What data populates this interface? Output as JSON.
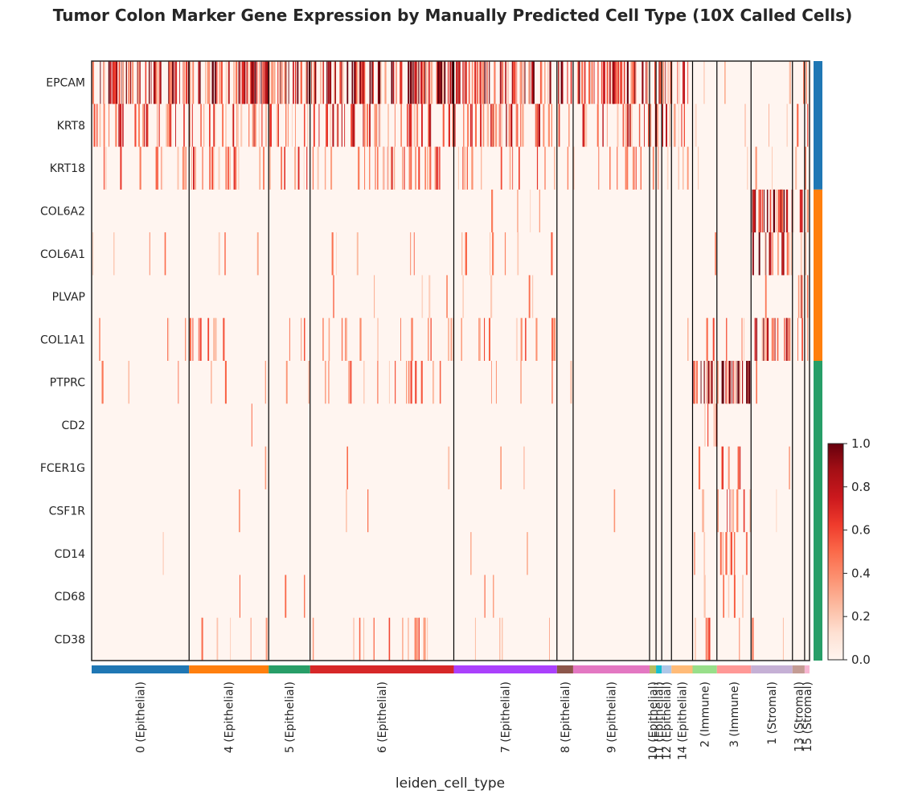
{
  "chart_data": {
    "type": "heatmap",
    "title": "Tumor Colon Marker Gene Expression by Manually Predicted Cell Type (10X Called Cells)",
    "xlabel": "leiden_cell_type",
    "genes": [
      "EPCAM",
      "KRT8",
      "KRT18",
      "COL6A2",
      "COL6A1",
      "PLVAP",
      "COL1A1",
      "PTPRC",
      "CD2",
      "FCER1G",
      "CSF1R",
      "CD14",
      "CD68",
      "CD38"
    ],
    "gene_group_colors": [
      {
        "color": "#1f77b4",
        "genes": [
          "EPCAM",
          "KRT8",
          "KRT18"
        ]
      },
      {
        "color": "#ff7f0e",
        "genes": [
          "COL6A2",
          "COL6A1",
          "PLVAP",
          "COL1A1"
        ]
      },
      {
        "color": "#279e68",
        "genes": [
          "PTPRC",
          "CD2",
          "FCER1G",
          "CSF1R",
          "CD14",
          "CD68",
          "CD38"
        ]
      }
    ],
    "groups": [
      {
        "label": "0 (Epithelial)",
        "color": "#1f77b4",
        "fraction": 0.1353
      },
      {
        "label": "4 (Epithelial)",
        "color": "#ff7f0e",
        "fraction": 0.1105
      },
      {
        "label": "5 (Epithelial)",
        "color": "#279e68",
        "fraction": 0.0575
      },
      {
        "label": "6 (Epithelial)",
        "color": "#d62728",
        "fraction": 0.1995
      },
      {
        "label": "7 (Epithelial)",
        "color": "#aa40fc",
        "fraction": 0.1432
      },
      {
        "label": "8 (Epithelial)",
        "color": "#8c564b",
        "fraction": 0.0225
      },
      {
        "label": "9 (Epithelial)",
        "color": "#e377c2",
        "fraction": 0.1061
      },
      {
        "label": "10 (Epithelial)",
        "color": "#b5bd61",
        "fraction": 0.009
      },
      {
        "label": "11 (Epithelial)",
        "color": "#17becf",
        "fraction": 0.0079
      },
      {
        "label": "12 (Epithelial)",
        "color": "#aec7e8",
        "fraction": 0.0135
      },
      {
        "label": "14 (Epithelial)",
        "color": "#ffbb78",
        "fraction": 0.0293
      },
      {
        "label": "2 (Immune)",
        "color": "#98df8a",
        "fraction": 0.0338
      },
      {
        "label": "3 (Immune)",
        "color": "#ff9896",
        "fraction": 0.0474
      },
      {
        "label": "1 (Stromal)",
        "color": "#c5b0d5",
        "fraction": 0.0575
      },
      {
        "label": "13 (Stromal)",
        "color": "#c49c94",
        "fraction": 0.0169
      },
      {
        "label": "15 (Stromal)",
        "color": "#f7b6d2",
        "fraction": 0.0068
      }
    ],
    "expression_pattern": {
      "EPCAM": [
        0.85,
        0.85,
        0.85,
        0.9,
        0.75,
        0.6,
        0.7,
        0.6,
        0.6,
        0.6,
        0.4,
        0.02,
        0.02,
        0.02,
        0.02,
        0.02
      ],
      "KRT8": [
        0.4,
        0.4,
        0.4,
        0.45,
        0.5,
        0.3,
        0.45,
        0.4,
        0.4,
        0.4,
        0.3,
        0.02,
        0.05,
        0.05,
        0.2,
        0.2
      ],
      "KRT18": [
        0.2,
        0.3,
        0.25,
        0.3,
        0.2,
        0.1,
        0.2,
        0.2,
        0.2,
        0.2,
        0.2,
        0.02,
        0.05,
        0.1,
        0.1,
        0.1
      ],
      "COL6A2": [
        0.0,
        0.0,
        0.0,
        0.0,
        0.05,
        0.0,
        0.0,
        0.0,
        0.0,
        0.0,
        0.0,
        0.0,
        0.0,
        0.9,
        0.3,
        0.1
      ],
      "COL6A1": [
        0.05,
        0.05,
        0.0,
        0.05,
        0.1,
        0.0,
        0.0,
        0.0,
        0.0,
        0.0,
        0.0,
        0.05,
        0.0,
        0.7,
        0.2,
        0.1
      ],
      "PLVAP": [
        0.0,
        0.0,
        0.0,
        0.05,
        0.05,
        0.0,
        0.0,
        0.0,
        0.0,
        0.0,
        0.0,
        0.0,
        0.0,
        0.02,
        0.6,
        0.3
      ],
      "COL1A1": [
        0.05,
        0.15,
        0.1,
        0.15,
        0.15,
        0.0,
        0.0,
        0.0,
        0.0,
        0.0,
        0.05,
        0.2,
        0.1,
        0.6,
        0.2,
        0.1
      ],
      "PTPRC": [
        0.05,
        0.05,
        0.05,
        0.15,
        0.05,
        0.05,
        0.0,
        0.0,
        0.0,
        0.0,
        0.0,
        0.7,
        0.9,
        0.02,
        0.0,
        0.0
      ],
      "CD2": [
        0.0,
        0.02,
        0.0,
        0.0,
        0.0,
        0.0,
        0.0,
        0.0,
        0.0,
        0.0,
        0.0,
        0.25,
        0.0,
        0.0,
        0.0,
        0.0
      ],
      "FCER1G": [
        0.0,
        0.02,
        0.0,
        0.02,
        0.02,
        0.0,
        0.0,
        0.0,
        0.0,
        0.0,
        0.0,
        0.05,
        0.3,
        0.02,
        0.0,
        0.0
      ],
      "CSF1R": [
        0.0,
        0.02,
        0.0,
        0.02,
        0.0,
        0.0,
        0.02,
        0.0,
        0.0,
        0.0,
        0.0,
        0.1,
        0.35,
        0.02,
        0.0,
        0.0
      ],
      "CD14": [
        0.02,
        0.0,
        0.0,
        0.0,
        0.02,
        0.0,
        0.0,
        0.0,
        0.0,
        0.0,
        0.0,
        0.1,
        0.35,
        0.0,
        0.0,
        0.0
      ],
      "CD68": [
        0.0,
        0.02,
        0.05,
        0.0,
        0.02,
        0.0,
        0.0,
        0.0,
        0.0,
        0.0,
        0.0,
        0.05,
        0.2,
        0.0,
        0.0,
        0.0
      ],
      "CD38": [
        0.0,
        0.1,
        0.0,
        0.15,
        0.05,
        0.0,
        0.0,
        0.0,
        0.0,
        0.0,
        0.0,
        0.2,
        0.05,
        0.05,
        0.0,
        0.0
      ]
    },
    "colorbar": {
      "colormap": "Reds",
      "min": 0.0,
      "max": 1.0,
      "ticks": [
        "0.0",
        "0.2",
        "0.4",
        "0.6",
        "0.8",
        "1.0"
      ]
    },
    "colormap_stops": [
      "#fff5f0",
      "#fee0d2",
      "#fcbba1",
      "#fc9272",
      "#fb6a4a",
      "#ef3b2c",
      "#cb181d",
      "#a50f15",
      "#67000d"
    ],
    "grid": false
  }
}
